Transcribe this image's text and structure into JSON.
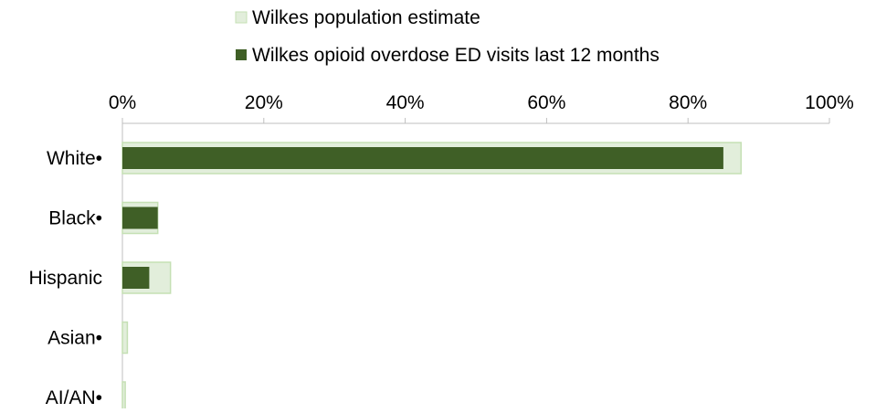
{
  "chart_data": {
    "type": "bar",
    "orientation": "horizontal",
    "categories": [
      "White•",
      "Black•",
      "Hispanic",
      "Asian•",
      "AI/AN•"
    ],
    "series": [
      {
        "name": "Wilkes population estimate",
        "values": [
          87.5,
          5.0,
          6.8,
          0.7,
          0.4
        ],
        "fill": "#e2eedb",
        "stroke": "#c5e0b4"
      },
      {
        "name": "Wilkes opioid overdose ED visits last 12 months",
        "values": [
          85.0,
          5.0,
          3.8,
          0,
          0
        ],
        "fill": "#3f5f26"
      }
    ],
    "xlim": [
      0,
      100
    ],
    "xticks": [
      "0%",
      "20%",
      "40%",
      "60%",
      "80%",
      "100%"
    ],
    "xaxis_position": "top",
    "legend_position": "top-center",
    "grid": false,
    "axis_color": "#bfbfbf"
  }
}
